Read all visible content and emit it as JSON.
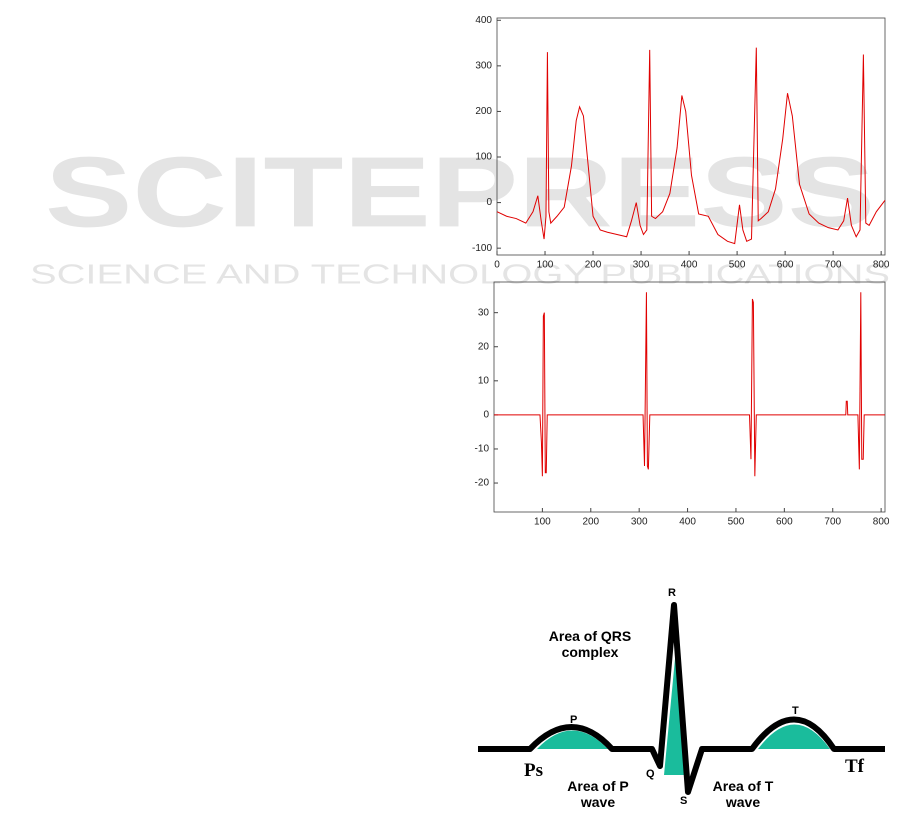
{
  "watermark": {
    "title": "SCITEPRESS",
    "subtitle": "SCIENCE AND TECHNOLOGY PUBLICATIONS"
  },
  "chart_data": [
    {
      "type": "line",
      "xlim": [
        0,
        808
      ],
      "ylim": [
        -115,
        405
      ],
      "xticks": [
        0,
        100,
        200,
        300,
        400,
        500,
        600,
        700,
        800
      ],
      "yticks": [
        -100,
        0,
        100,
        200,
        300,
        400
      ],
      "color": "#e00000",
      "x": [
        0,
        20,
        40,
        60,
        75,
        85,
        92,
        98,
        102,
        105,
        108,
        112,
        125,
        140,
        155,
        165,
        172,
        180,
        190,
        200,
        215,
        230,
        250,
        270,
        280,
        290,
        298,
        305,
        312,
        318,
        322,
        330,
        345,
        360,
        375,
        385,
        393,
        405,
        420,
        440,
        460,
        480,
        495,
        505,
        512,
        520,
        530,
        540,
        544,
        550,
        565,
        580,
        595,
        605,
        615,
        630,
        650,
        670,
        690,
        710,
        722,
        730,
        738,
        748,
        756,
        763,
        768,
        775,
        790,
        808
      ],
      "values": [
        -20,
        -30,
        -35,
        -45,
        -20,
        15,
        -40,
        -80,
        -30,
        330,
        -20,
        -45,
        -30,
        -10,
        80,
        180,
        210,
        190,
        80,
        -30,
        -60,
        -65,
        -70,
        -75,
        -40,
        0,
        -50,
        -70,
        -60,
        335,
        -30,
        -35,
        -20,
        20,
        120,
        235,
        200,
        60,
        -25,
        -30,
        -70,
        -85,
        -90,
        -5,
        -60,
        -85,
        -80,
        340,
        -40,
        -35,
        -20,
        30,
        140,
        240,
        190,
        40,
        -25,
        -45,
        -55,
        -60,
        -40,
        10,
        -50,
        -75,
        -60,
        325,
        -45,
        -50,
        -20,
        5
      ]
    },
    {
      "type": "line",
      "xlim": [
        0,
        808
      ],
      "ylim": [
        -28.5,
        39
      ],
      "xticks": [
        100,
        200,
        300,
        400,
        500,
        600,
        700,
        800
      ],
      "yticks": [
        -20,
        -10,
        0,
        10,
        20,
        30
      ],
      "color": "#e00000",
      "x": [
        0,
        95,
        98,
        100,
        102,
        104,
        106,
        108,
        110,
        308,
        311,
        313,
        315,
        317,
        319,
        322,
        528,
        531,
        534,
        536,
        539,
        542,
        727,
        728,
        730,
        731,
        752,
        755,
        758,
        760,
        763,
        765,
        808
      ],
      "values": [
        0,
        0,
        -8,
        -18,
        29,
        30,
        -17,
        -17,
        0,
        0,
        -15,
        10,
        36,
        -15,
        -16,
        0,
        0,
        -13,
        34,
        33,
        -18,
        0,
        0,
        4,
        4,
        0,
        0,
        -16,
        36,
        -13,
        -13,
        0,
        0
      ]
    }
  ],
  "diagram": {
    "r": "R",
    "qrs_area": "Area of QRS complex",
    "p": "P",
    "t": "T",
    "ps": "Ps",
    "q": "Q",
    "s": "S",
    "tf": "Tf",
    "p_area": "Area of P wave",
    "t_area": "Area of T wave"
  }
}
